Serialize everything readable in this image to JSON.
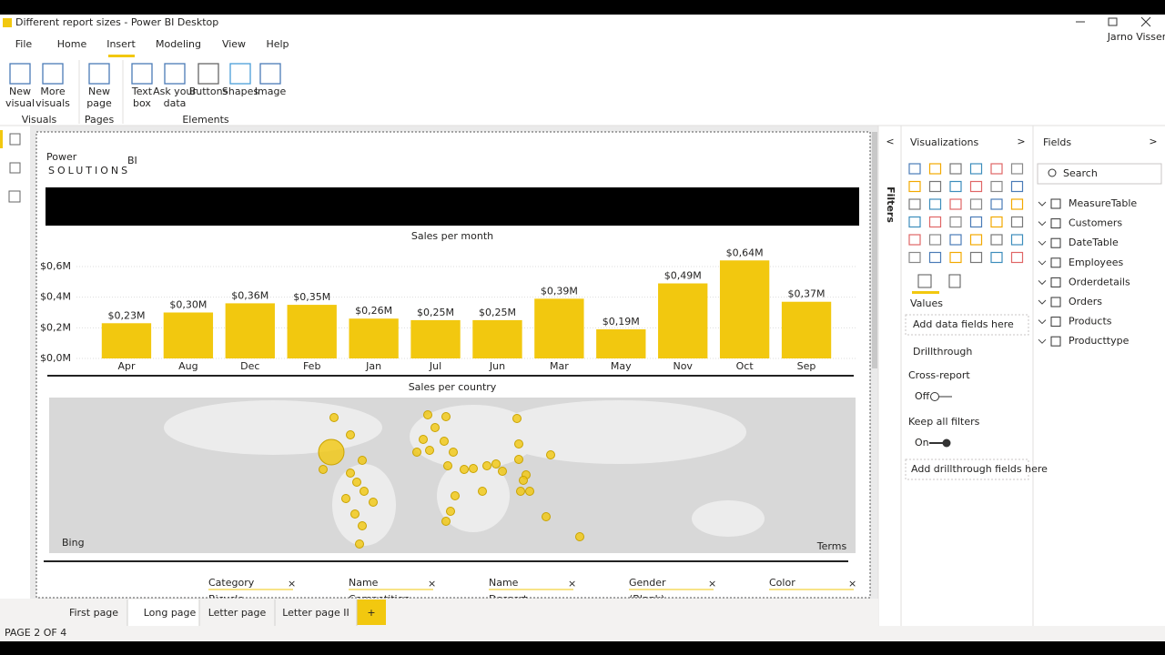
{
  "window": {
    "title": "Different report sizes - Power BI Desktop",
    "user": "Jarno Visser"
  },
  "menu": [
    "File",
    "Home",
    "Insert",
    "Modeling",
    "View",
    "Help"
  ],
  "ribbon": {
    "buttons": [
      [
        "New",
        "visual"
      ],
      [
        "More",
        "visuals"
      ],
      [
        "New",
        "page"
      ],
      [
        "Text",
        "box"
      ],
      [
        "Ask your",
        "data"
      ],
      [
        "Buttons"
      ],
      [
        "Shapes"
      ],
      [
        "Image"
      ]
    ],
    "groups": [
      "Visuals",
      "Pages",
      "Elements"
    ]
  },
  "report": {
    "logo": {
      "main": "Power",
      "accent": "BI",
      "sub": "SOLUTIONS"
    },
    "bar_chart": {
      "type": "bar",
      "title": "Sales per month",
      "categories": [
        "Apr",
        "Aug",
        "Dec",
        "Feb",
        "Jan",
        "Jul",
        "Jun",
        "Mar",
        "May",
        "Nov",
        "Oct",
        "Sep"
      ],
      "values": [
        0.23,
        0.3,
        0.36,
        0.35,
        0.26,
        0.25,
        0.25,
        0.39,
        0.19,
        0.49,
        0.64,
        0.37
      ],
      "value_labels": [
        "$0,23M",
        "$0,30M",
        "$0,36M",
        "$0,35M",
        "$0,26M",
        "$0,25M",
        "$0,25M",
        "$0,39M",
        "$0,19M",
        "$0,49M",
        "$0,64M",
        "$0,37M"
      ],
      "color": "#f2c80f",
      "ylim": [
        0,
        0.6
      ],
      "yticks": [
        {
          "value": 0,
          "label": "$0,0M"
        },
        {
          "value": 0.2,
          "label": "$0,2M"
        },
        {
          "value": 0.4,
          "label": "$0,4M"
        },
        {
          "value": 0.6,
          "label": "$0,6M"
        }
      ],
      "grid": true
    },
    "map": {
      "title": "Sales per country",
      "provider": "Bing",
      "terms": "Terms"
    },
    "slicers": [
      {
        "field": "Category",
        "value": "Bicycle"
      },
      {
        "field": "Name",
        "value": "Competition"
      },
      {
        "field": "Name",
        "value": "Dessert"
      },
      {
        "field": "Gender",
        "value": "(Blank)"
      },
      {
        "field": "Color",
        "value": ""
      }
    ]
  },
  "page_tabs": [
    "First page",
    "Long page",
    "Letter page",
    "Letter page II"
  ],
  "status": "PAGE 2 OF 4",
  "filters_pane": {
    "title": "Filters"
  },
  "visualizations": {
    "title": "Visualizations",
    "values_label": "Values",
    "values_placeholder": "Add data fields here",
    "drillthrough": "Drillthrough",
    "cross_report": "Cross-report",
    "cross_report_state": "Off",
    "keep_filters": "Keep all filters",
    "keep_filters_state": "On",
    "drillthrough_placeholder": "Add drillthrough fields here"
  },
  "fields": {
    "title": "Fields",
    "search": "Search",
    "tables": [
      "MeasureTable",
      "Customers",
      "DateTable",
      "Employees",
      "Orderdetails",
      "Orders",
      "Products",
      "Producttype"
    ]
  }
}
